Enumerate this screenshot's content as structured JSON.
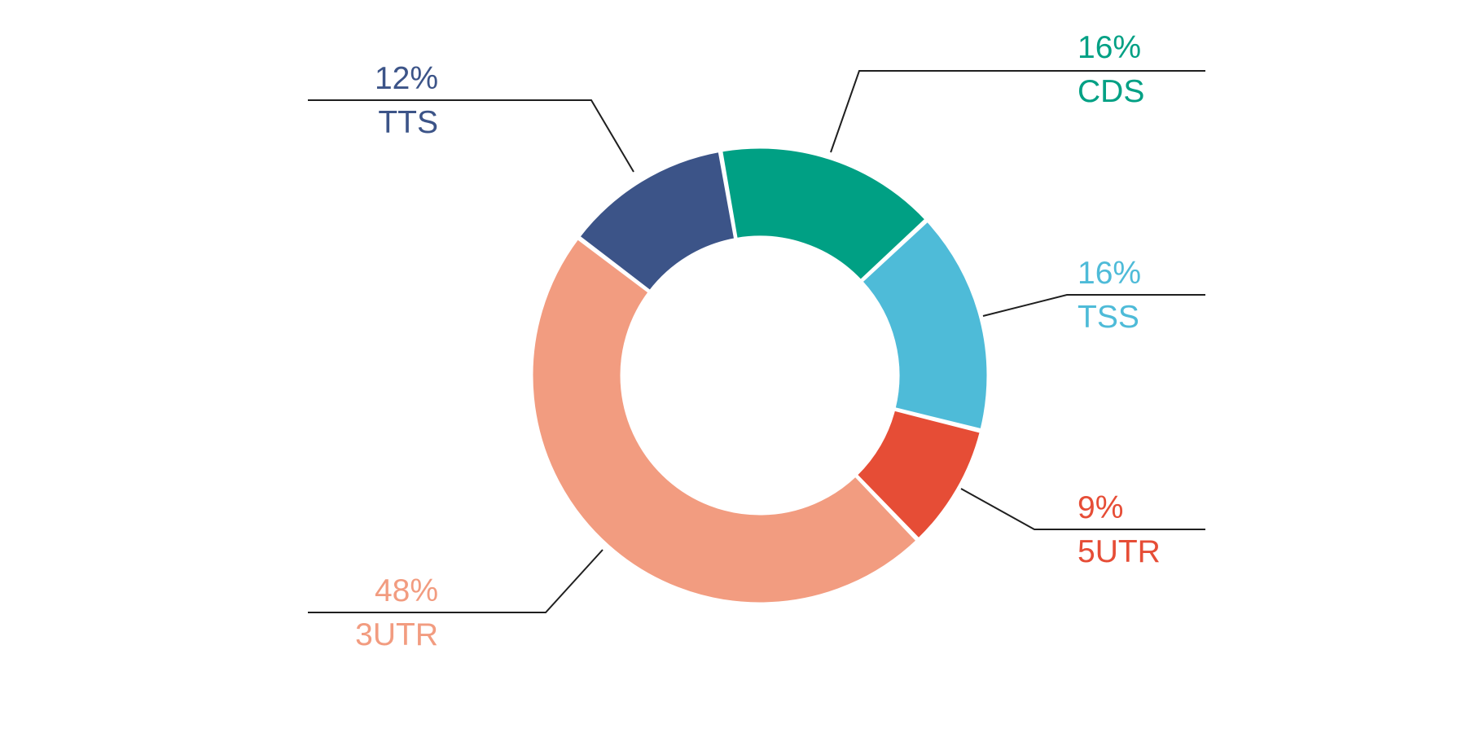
{
  "chart_data": {
    "type": "pie",
    "donut": true,
    "title": "",
    "legend": "none",
    "units": "%",
    "series": [
      {
        "labels": [
          "CDS",
          "TSS",
          "5UTR",
          "3UTR",
          "TTS"
        ],
        "values": [
          16,
          16,
          9,
          48,
          12
        ],
        "value_labels": [
          "16%",
          "16%",
          "9%",
          "48%",
          "12%"
        ],
        "colors": [
          "#00a084",
          "#4ebbd8",
          "#e64d36",
          "#f29c80",
          "#3c5488"
        ]
      }
    ]
  }
}
